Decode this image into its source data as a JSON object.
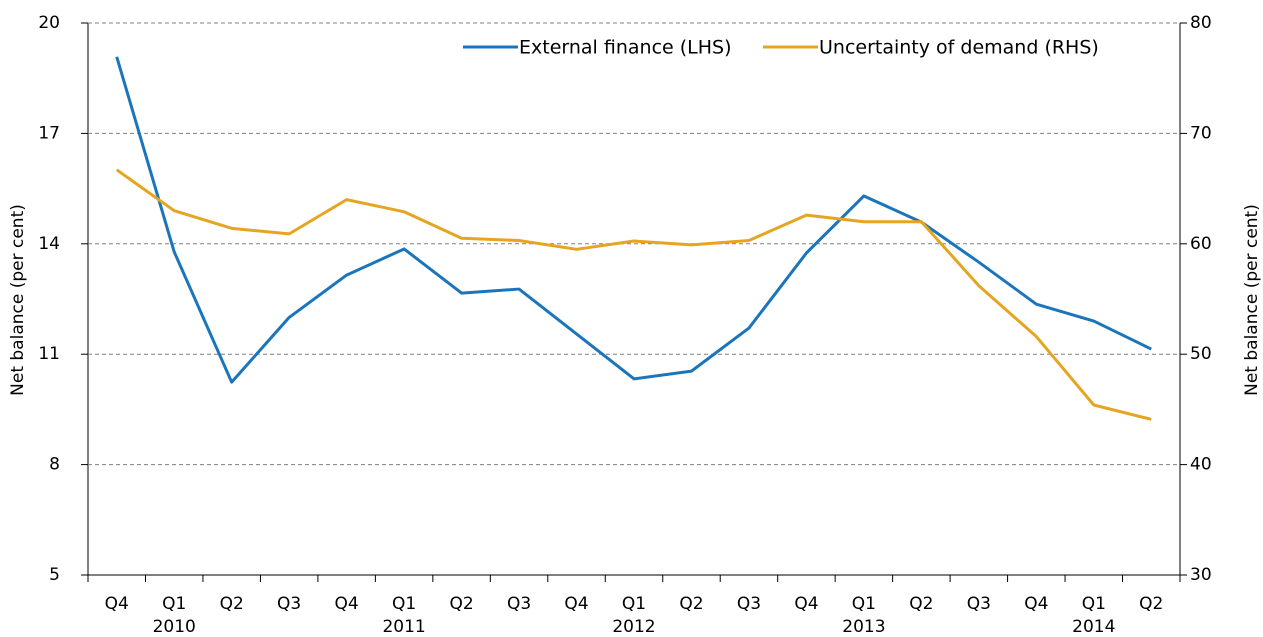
{
  "chart_data": {
    "type": "line",
    "y_label": "Net balance (per cent)",
    "y2_label": "Net balance (per cent)",
    "categories": [
      "Q4",
      "Q1",
      "Q2",
      "Q3",
      "Q4",
      "Q1",
      "Q2",
      "Q3",
      "Q4",
      "Q1",
      "Q2",
      "Q3",
      "Q4",
      "Q1",
      "Q2",
      "Q3",
      "Q4",
      "Q1",
      "Q2"
    ],
    "year_labels": [
      null,
      "2010",
      null,
      null,
      null,
      "2011",
      null,
      null,
      null,
      "2012",
      null,
      null,
      null,
      "2013",
      null,
      null,
      null,
      "2014",
      null
    ],
    "series": [
      {
        "name": "External finance (LHS)",
        "color": "#1b75bb",
        "axis": "y",
        "values": [
          19.08,
          13.78,
          10.24,
          12.0,
          13.15,
          13.86,
          12.66,
          12.77,
          11.55,
          10.33,
          10.54,
          11.71,
          13.75,
          15.3,
          14.59,
          13.5,
          12.36,
          11.9,
          11.14
        ]
      },
      {
        "name": "Uncertainty of demand (RHS)",
        "color": "#e6a521",
        "axis": "y2",
        "values": [
          66.7,
          63.0,
          61.4,
          60.9,
          64.0,
          62.9,
          60.5,
          60.3,
          59.5,
          60.25,
          59.9,
          60.3,
          62.6,
          62.0,
          62.0,
          56.2,
          51.6,
          45.4,
          44.1
        ]
      }
    ],
    "ylim": [
      5,
      20
    ],
    "yticks": [
      5,
      8,
      11,
      14,
      17,
      20
    ],
    "y2lim": [
      30,
      80
    ],
    "y2ticks": [
      30,
      40,
      50,
      60,
      70,
      80
    ],
    "grid": true,
    "legend": "top-right"
  }
}
